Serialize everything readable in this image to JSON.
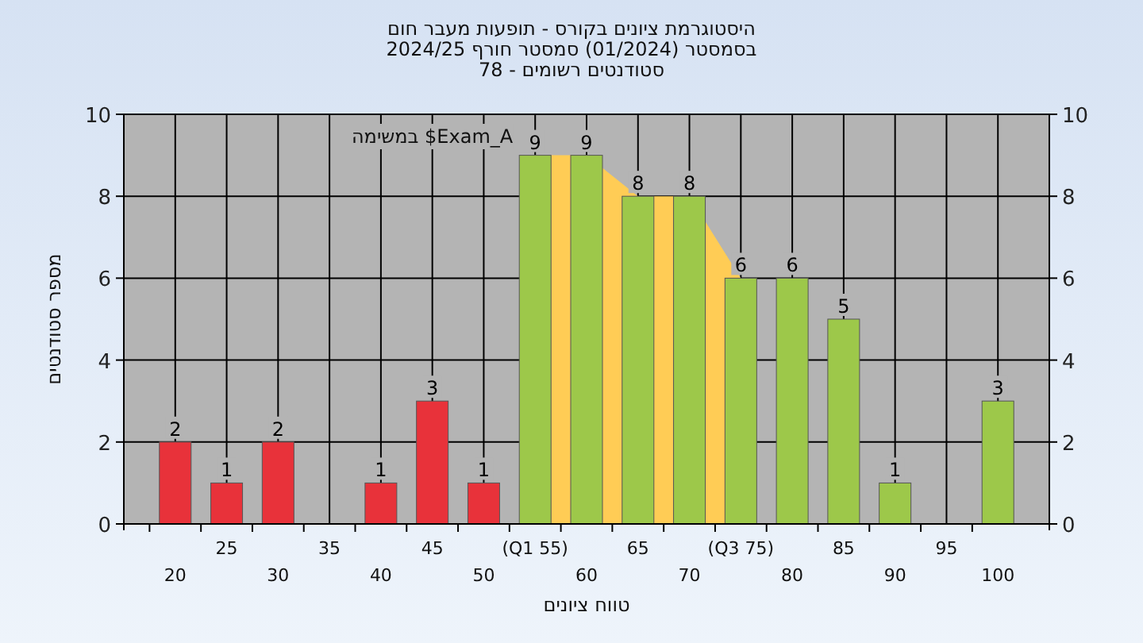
{
  "chart_data": {
    "type": "bar",
    "title": "היסטוגרמת ציונים בקורס - תופעות מעבר חום",
    "subtitle": "בסמסטר  (01/2024)  סמסטר חורף 2024/25\nסטודנטים רשומים - 78",
    "xlabel": "טווח ציונים",
    "ylabel": "מספר סטודנטים",
    "annotations": [
      "במשימה $Exam_A"
    ],
    "categories": [
      "20",
      "25",
      "30",
      "35",
      "40",
      "45",
      "50",
      "(Q1 55)",
      "60",
      "65",
      "70",
      "(Q3 75)",
      "80",
      "85",
      "90",
      "95",
      "100"
    ],
    "series": [
      {
        "type": "area",
        "color": "#ffcc55",
        "values": [
          null,
          null,
          null,
          null,
          null,
          null,
          null,
          9,
          9,
          8,
          8,
          6,
          null,
          null,
          null,
          null,
          null
        ]
      },
      {
        "value_labels": [
          "2",
          "1",
          "2",
          null,
          "1",
          "3",
          "1",
          "9",
          "9",
          "8",
          "8",
          "6",
          "6",
          "5",
          "1",
          null,
          "3"
        ],
        "colors": [
          "#e8323a",
          "#e8323a",
          "#e8323a",
          null,
          "#e8323a",
          "#e8323a",
          "#e8323a",
          "#9dc84a",
          "#9dc84a",
          "#9dc84a",
          "#9dc84a",
          "#9dc84a",
          "#9dc84a",
          "#9dc84a",
          "#9dc84a",
          null,
          "#9dc84a"
        ],
        "values": [
          2,
          1,
          2,
          null,
          1,
          3,
          1,
          9,
          9,
          8,
          8,
          6,
          6,
          5,
          1,
          null,
          3
        ]
      }
    ],
    "ylim": [
      0,
      10
    ],
    "yticks": [
      0,
      2,
      4,
      6,
      8,
      10
    ],
    "y2lim": [
      0,
      10
    ],
    "y2ticks": [
      0,
      2,
      4,
      6,
      8,
      10
    ],
    "grid": true
  }
}
